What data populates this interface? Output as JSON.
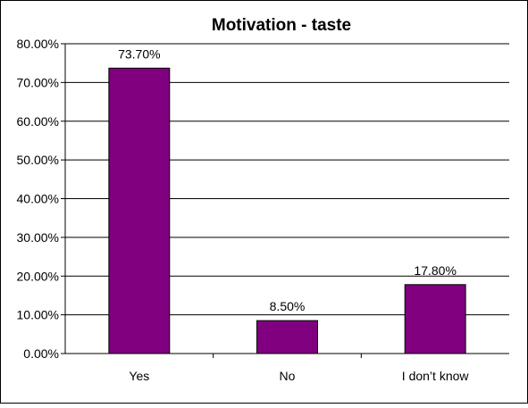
{
  "chart_data": {
    "type": "bar",
    "title": "Motivation - taste",
    "xlabel": "",
    "ylabel": "",
    "categories": [
      "Yes",
      "No",
      "I don’t know"
    ],
    "values": [
      73.7,
      8.5,
      17.8
    ],
    "data_labels": [
      "73.70%",
      "8.50%",
      "17.80%"
    ],
    "ylim": [
      0,
      80
    ],
    "yticks": [
      0,
      10,
      20,
      30,
      40,
      50,
      60,
      70,
      80
    ],
    "ytick_labels": [
      "0.00%",
      "10.00%",
      "20.00%",
      "30.00%",
      "40.00%",
      "50.00%",
      "60.00%",
      "70.00%",
      "80.00%"
    ],
    "grid": true,
    "legend": "none",
    "bar_color": "#800080",
    "bar_edge_color": "#000000"
  }
}
